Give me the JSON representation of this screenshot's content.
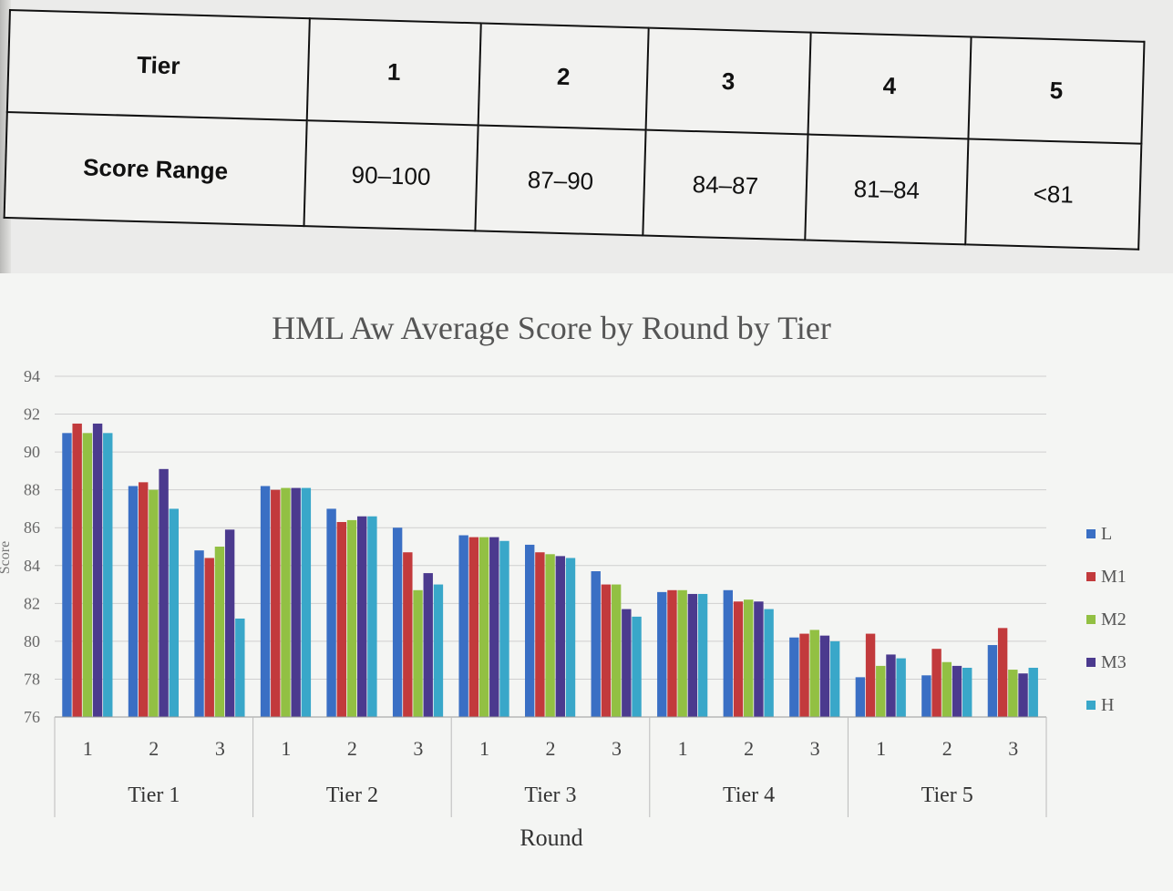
{
  "table": {
    "row1_label": "Tier",
    "row2_label": "Score Range",
    "tiers": [
      "1",
      "2",
      "3",
      "4",
      "5"
    ],
    "ranges": [
      "90–100",
      "87–90",
      "84–87",
      "81–84",
      "<81"
    ]
  },
  "chart_data": {
    "type": "bar",
    "title": "HML Aw Average Score by Round by Tier",
    "xlabel": "Round",
    "ylabel": "Score",
    "ylim": [
      76,
      94
    ],
    "yticks": [
      76,
      78,
      80,
      82,
      84,
      86,
      88,
      90,
      92,
      94
    ],
    "grid": true,
    "legend_position": "right",
    "groups": [
      {
        "name": "Tier 1",
        "rounds": [
          "1",
          "2",
          "3"
        ]
      },
      {
        "name": "Tier 2",
        "rounds": [
          "1",
          "2",
          "3"
        ]
      },
      {
        "name": "Tier 3",
        "rounds": [
          "1",
          "2",
          "3"
        ]
      },
      {
        "name": "Tier 4",
        "rounds": [
          "1",
          "2",
          "3"
        ]
      },
      {
        "name": "Tier 5",
        "rounds": [
          "1",
          "2",
          "3"
        ]
      }
    ],
    "series": [
      {
        "name": "L",
        "color": "#3a6fc4",
        "values": [
          91.0,
          88.2,
          84.8,
          88.2,
          87.0,
          86.0,
          85.6,
          85.1,
          83.7,
          82.6,
          82.7,
          80.2,
          78.1,
          78.2,
          79.8
        ]
      },
      {
        "name": "M1",
        "color": "#c23a3c",
        "values": [
          91.5,
          88.4,
          84.4,
          88.0,
          86.3,
          84.7,
          85.5,
          84.7,
          83.0,
          82.7,
          82.1,
          80.4,
          80.4,
          79.6,
          80.7
        ]
      },
      {
        "name": "M2",
        "color": "#92c043",
        "values": [
          91.0,
          88.0,
          85.0,
          88.1,
          86.4,
          82.7,
          85.5,
          84.6,
          83.0,
          82.7,
          82.2,
          80.6,
          78.7,
          78.9,
          78.5
        ]
      },
      {
        "name": "M3",
        "color": "#4b3a8e",
        "values": [
          91.5,
          89.1,
          85.9,
          88.1,
          86.6,
          83.6,
          85.5,
          84.5,
          81.7,
          82.5,
          82.1,
          80.3,
          79.3,
          78.7,
          78.3
        ]
      },
      {
        "name": "H",
        "color": "#39a7c9",
        "values": [
          91.0,
          87.0,
          81.2,
          88.1,
          86.6,
          83.0,
          85.3,
          84.4,
          81.3,
          82.5,
          81.7,
          80.0,
          79.1,
          78.6,
          78.6
        ]
      }
    ]
  }
}
